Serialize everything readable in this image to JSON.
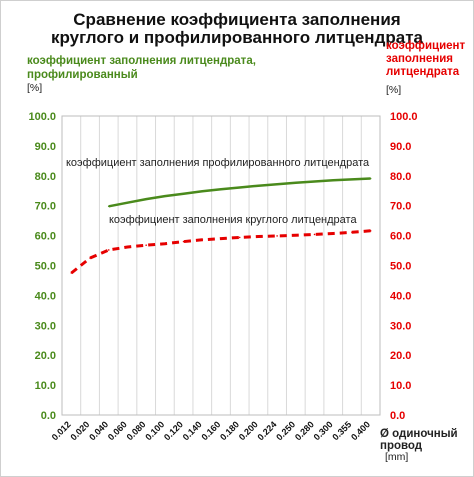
{
  "chart_data": {
    "type": "line",
    "title_lines": [
      "Сравнение коэффициента заполнения",
      "круглого и профилированного литцендрата"
    ],
    "ylabel_left": "коэффициент заполнения литцендрата, профилированный",
    "ylabel_left_unit": "[%]",
    "ylabel_right": "коэффициент заполнения литцендрата",
    "ylabel_right_unit": "[%]",
    "xlabel": "Ø одиночный провод",
    "xlabel_unit": "[mm]",
    "ylim": [
      0,
      100
    ],
    "y_ticks": [
      "0.0",
      "10.0",
      "20.0",
      "30.0",
      "40.0",
      "50.0",
      "60.0",
      "70.0",
      "80.0",
      "90.0",
      "100.0"
    ],
    "categories": [
      "0.012",
      "0.020",
      "0.040",
      "0.060",
      "0.080",
      "0.100",
      "0.120",
      "0.140",
      "0.160",
      "0.180",
      "0.200",
      "0.224",
      "0.250",
      "0.280",
      "0.300",
      "0.355",
      "0.400"
    ],
    "grid": "vertical",
    "series": [
      {
        "name": "коэффициент заполнения профилированного литцендрата",
        "style": "solid",
        "color": "#4a8a1c",
        "values": [
          null,
          null,
          69.8,
          71.0,
          72.2,
          73.2,
          74.0,
          74.8,
          75.5,
          76.1,
          76.7,
          77.2,
          77.7,
          78.1,
          78.5,
          78.8,
          79.1
        ]
      },
      {
        "name": "коэффициент заполнения круглого литцендрата",
        "style": "dashed",
        "color": "#e60000",
        "values": [
          47.5,
          52.5,
          55.2,
          56.2,
          56.8,
          57.3,
          58.0,
          58.6,
          59.0,
          59.4,
          59.7,
          59.9,
          60.1,
          60.4,
          60.7,
          61.1,
          61.6
        ]
      }
    ]
  },
  "colors": {
    "left_axis": "#4a8a1c",
    "right_axis": "#e60000"
  }
}
